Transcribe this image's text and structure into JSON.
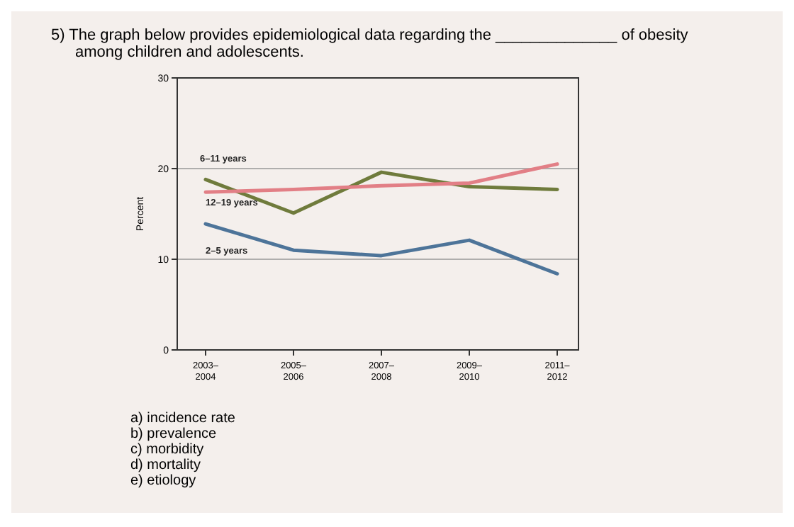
{
  "chart_data": {
    "type": "line",
    "title": "5) The graph below provides epidemiological data regarding the ______________ of obesity among children and adolescents.",
    "ylabel": "Percent",
    "categories": [
      "2003–2004",
      "2005–2006",
      "2007–2008",
      "2009–2010",
      "2011–2012"
    ],
    "ylim": [
      0,
      30
    ],
    "yticks": [
      0,
      10,
      20,
      30
    ],
    "grid": "y",
    "legend": false,
    "series": [
      {
        "name": "6–11 years",
        "color": "#6f7b3c",
        "values": [
          18.8,
          15.1,
          19.6,
          18.0,
          17.7
        ]
      },
      {
        "name": "12–19 years",
        "color": "#e27f86",
        "values": [
          17.4,
          17.7,
          18.1,
          18.4,
          20.5
        ]
      },
      {
        "name": "2–5 years",
        "color": "#4d7499",
        "values": [
          13.9,
          11.0,
          10.4,
          12.1,
          8.4
        ]
      }
    ],
    "annotations": [
      "a) incidence rate",
      "b) prevalence",
      "c) morbidity",
      "d) mortality",
      "e) etiology"
    ]
  }
}
